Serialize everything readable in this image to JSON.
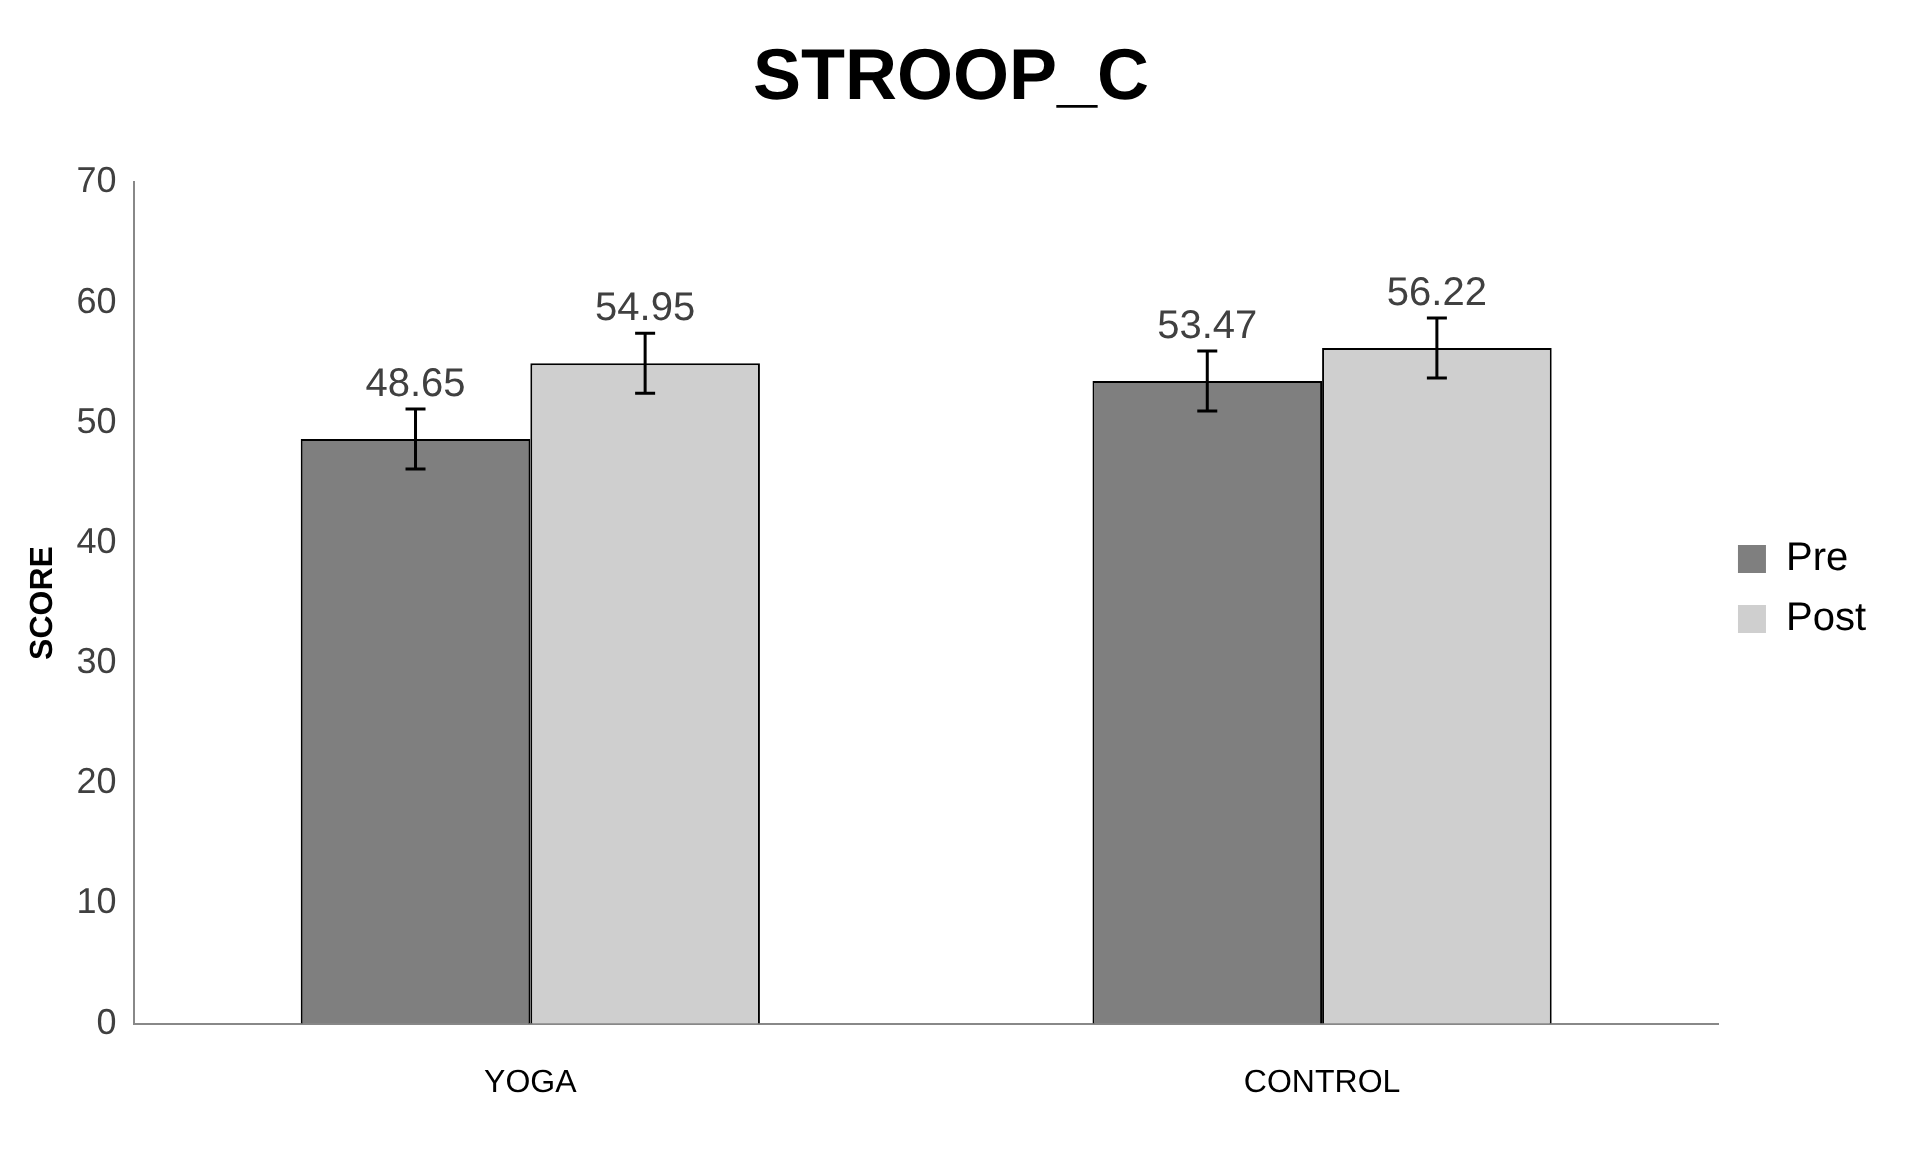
{
  "chart_data": {
    "type": "bar",
    "title": "STROOP_C",
    "ylabel": "SCORE",
    "categories": [
      "YOGA",
      "CONTROL"
    ],
    "series": [
      {
        "name": "Pre",
        "color": "#7f7f7f",
        "values": [
          48.65,
          53.47
        ],
        "errors": [
          2.5,
          2.5
        ]
      },
      {
        "name": "Post",
        "color": "#cfcfcf",
        "values": [
          54.95,
          56.22
        ],
        "errors": [
          2.5,
          2.5
        ]
      }
    ],
    "ylim": [
      0,
      70
    ],
    "yticks": [
      0,
      10,
      20,
      30,
      40,
      50,
      60,
      70
    ],
    "grid": false,
    "legend": "right",
    "data_labels": true
  }
}
